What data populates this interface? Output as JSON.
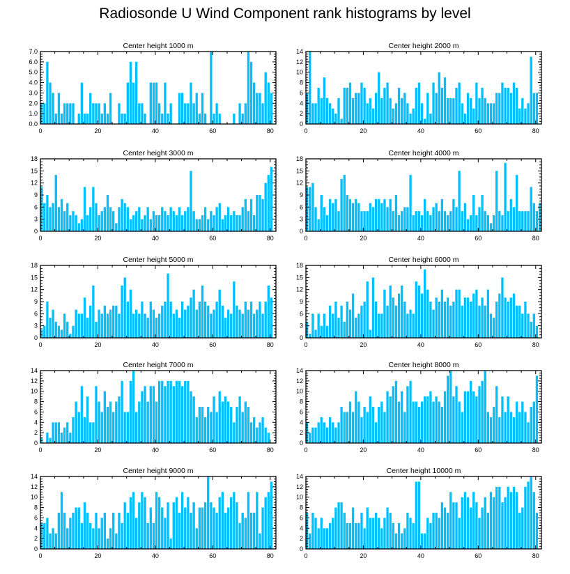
{
  "title": "Radiosonde U Wind Component rank histograms by level",
  "colors": {
    "bar": "#00bfff",
    "axis": "#000000"
  },
  "chart_data": [
    {
      "type": "bar",
      "title": "Center height 1000 m",
      "xlim": [
        0,
        82
      ],
      "ylim": [
        0,
        7
      ],
      "xticks": [
        "0",
        "20",
        "40",
        "60",
        "80"
      ],
      "yticks": [
        "0.0",
        "1.0",
        "2.0",
        "3.0",
        "4.0",
        "5.0",
        "6.0",
        "7.0"
      ],
      "values": [
        2,
        2,
        6,
        4,
        3,
        1,
        3,
        1,
        2,
        2,
        2,
        2,
        0,
        1,
        4,
        1,
        1,
        3,
        2,
        2,
        2,
        1,
        2,
        1,
        3,
        0,
        0,
        2,
        1,
        1,
        4,
        6,
        4,
        6,
        2,
        2,
        1,
        0,
        4,
        4,
        4,
        2,
        1,
        4,
        1,
        2,
        0,
        0,
        3,
        3,
        2,
        2,
        4,
        2,
        3,
        1,
        3,
        1,
        0,
        7,
        1,
        2,
        1,
        0,
        0,
        0,
        0,
        1,
        0,
        2,
        1,
        2,
        7,
        6,
        4,
        3,
        3,
        2,
        5,
        4,
        3
      ]
    },
    {
      "type": "bar",
      "title": "Center height 2000 m",
      "xlim": [
        0,
        82
      ],
      "ylim": [
        0,
        14
      ],
      "xticks": [
        "0",
        "20",
        "40",
        "60",
        "80"
      ],
      "yticks": [
        "0",
        "2",
        "4",
        "6",
        "8",
        "10",
        "12",
        "14"
      ],
      "values": [
        6,
        14,
        4,
        4,
        7,
        5,
        9,
        5,
        4,
        3,
        2,
        5,
        1,
        7,
        7,
        8,
        5,
        6,
        6,
        8,
        7,
        4,
        5,
        3,
        6,
        10,
        5,
        7,
        8,
        5,
        3,
        4,
        7,
        5,
        6,
        4,
        2,
        3,
        7,
        8,
        4,
        1,
        6,
        2,
        8,
        6,
        10,
        7,
        9,
        5,
        5,
        5,
        7,
        8,
        4,
        2,
        6,
        5,
        3,
        8,
        5,
        7,
        5,
        4,
        4,
        4,
        6,
        6,
        8,
        7,
        7,
        6,
        8,
        7,
        3,
        5,
        3,
        4,
        13,
        6,
        6
      ]
    },
    {
      "type": "bar",
      "title": "Center height 3000 m",
      "xlim": [
        0,
        82
      ],
      "ylim": [
        0,
        18
      ],
      "xticks": [
        "0",
        "20",
        "40",
        "60",
        "80"
      ],
      "yticks": [
        "0",
        "3",
        "6",
        "9",
        "12",
        "15",
        "18"
      ],
      "values": [
        11,
        7,
        9,
        6,
        7,
        14,
        6,
        8,
        5,
        7,
        4,
        5,
        4,
        2,
        3,
        11,
        4,
        6,
        11,
        7,
        4,
        5,
        6,
        9,
        6,
        5,
        2,
        6,
        8,
        7,
        6,
        3,
        4,
        5,
        6,
        3,
        4,
        6,
        3,
        5,
        4,
        4,
        6,
        5,
        4,
        6,
        5,
        4,
        6,
        4,
        5,
        6,
        15,
        5,
        3,
        3,
        4,
        6,
        3,
        5,
        4,
        6,
        7,
        3,
        4,
        6,
        4,
        5,
        4,
        4,
        6,
        8,
        5,
        8,
        4,
        9,
        9,
        8,
        12,
        14,
        16
      ]
    },
    {
      "type": "bar",
      "title": "Center height 4000 m",
      "xlim": [
        0,
        82
      ],
      "ylim": [
        0,
        18
      ],
      "xticks": [
        "0",
        "20",
        "40",
        "60",
        "80"
      ],
      "yticks": [
        "0",
        "3",
        "6",
        "9",
        "12",
        "15",
        "18"
      ],
      "values": [
        11,
        11,
        12,
        6,
        3,
        9,
        6,
        4,
        8,
        7,
        8,
        5,
        13,
        14,
        9,
        8,
        7,
        8,
        7,
        5,
        5,
        5,
        7,
        6,
        8,
        8,
        7,
        8,
        6,
        8,
        5,
        9,
        4,
        5,
        6,
        6,
        14,
        4,
        5,
        5,
        4,
        8,
        5,
        4,
        6,
        7,
        5,
        8,
        5,
        4,
        5,
        8,
        6,
        15,
        5,
        7,
        3,
        4,
        9,
        4,
        6,
        9,
        5,
        4,
        2,
        4,
        15,
        5,
        4,
        17,
        5,
        8,
        6,
        14,
        5,
        5,
        5,
        5,
        11,
        7,
        5,
        7
      ]
    },
    {
      "type": "bar",
      "title": "Center height 5000 m",
      "xlim": [
        0,
        82
      ],
      "ylim": [
        0,
        18
      ],
      "xticks": [
        "0",
        "20",
        "40",
        "60",
        "80"
      ],
      "yticks": [
        "0",
        "3",
        "6",
        "9",
        "12",
        "15",
        "18"
      ],
      "values": [
        2,
        3,
        9,
        5,
        7,
        4,
        3,
        2,
        6,
        4,
        1,
        3,
        7,
        6,
        6,
        10,
        5,
        8,
        13,
        4,
        7,
        6,
        8,
        6,
        7,
        8,
        8,
        6,
        13,
        15,
        9,
        12,
        6,
        7,
        6,
        9,
        6,
        5,
        9,
        7,
        5,
        6,
        8,
        9,
        16,
        9,
        6,
        7,
        5,
        9,
        7,
        8,
        10,
        12,
        7,
        9,
        13,
        9,
        8,
        6,
        7,
        9,
        12,
        8,
        5,
        7,
        6,
        14,
        8,
        7,
        6,
        9,
        7,
        9,
        6,
        7,
        9,
        6,
        9,
        13,
        10
      ]
    },
    {
      "type": "bar",
      "title": "Center height 6000 m",
      "xlim": [
        0,
        82
      ],
      "ylim": [
        0,
        18
      ],
      "xticks": [
        "0",
        "20",
        "40",
        "60",
        "80"
      ],
      "yticks": [
        "0",
        "3",
        "6",
        "9",
        "12",
        "15",
        "18"
      ],
      "values": [
        4,
        1,
        6,
        2,
        6,
        3,
        6,
        3,
        8,
        6,
        9,
        5,
        8,
        4,
        9,
        7,
        11,
        5,
        6,
        8,
        9,
        14,
        2,
        15,
        9,
        6,
        6,
        12,
        8,
        13,
        10,
        8,
        11,
        13,
        9,
        6,
        7,
        6,
        14,
        13,
        11,
        17,
        12,
        9,
        7,
        10,
        9,
        12,
        9,
        10,
        8,
        9,
        12,
        12,
        8,
        10,
        10,
        9,
        11,
        12,
        8,
        10,
        8,
        12,
        6,
        5,
        9,
        11,
        15,
        10,
        9,
        10,
        11,
        8,
        8,
        6,
        9,
        6,
        4,
        6,
        3
      ]
    },
    {
      "type": "bar",
      "title": "Center height 7000 m",
      "xlim": [
        0,
        82
      ],
      "ylim": [
        0,
        14
      ],
      "xticks": [
        "0",
        "20",
        "40",
        "60",
        "80"
      ],
      "yticks": [
        "0",
        "2",
        "4",
        "6",
        "8",
        "10",
        "12",
        "14"
      ],
      "values": [
        1,
        0,
        2,
        1,
        4,
        4,
        4,
        2,
        3,
        4,
        2,
        5,
        8,
        6,
        11,
        5,
        9,
        4,
        4,
        11,
        8,
        6,
        10,
        7,
        8,
        6,
        8,
        9,
        12,
        6,
        6,
        12,
        14,
        6,
        8,
        10,
        11,
        8,
        11,
        11,
        8,
        12,
        12,
        11,
        12,
        12,
        11,
        12,
        12,
        11,
        12,
        12,
        10,
        9,
        5,
        7,
        7,
        5,
        7,
        6,
        9,
        6,
        10,
        8,
        9,
        8,
        7,
        4,
        7,
        9,
        6,
        8,
        7,
        4,
        5,
        3,
        4,
        5,
        3,
        2
      ]
    },
    {
      "type": "bar",
      "title": "Center height 8000 m",
      "xlim": [
        0,
        82
      ],
      "ylim": [
        0,
        14
      ],
      "xticks": [
        "0",
        "20",
        "40",
        "60",
        "80"
      ],
      "yticks": [
        "0",
        "2",
        "4",
        "6",
        "8",
        "10",
        "12",
        "14"
      ],
      "values": [
        4,
        2,
        3,
        3,
        4,
        5,
        4,
        3,
        5,
        4,
        3,
        4,
        7,
        6,
        6,
        8,
        6,
        10,
        8,
        5,
        7,
        6,
        9,
        7,
        4,
        7,
        8,
        6,
        10,
        9,
        11,
        12,
        8,
        10,
        6,
        11,
        12,
        8,
        8,
        7,
        8,
        9,
        9,
        10,
        8,
        9,
        8,
        7,
        10,
        13,
        14,
        9,
        11,
        8,
        6,
        10,
        10,
        12,
        10,
        9,
        11,
        12,
        14,
        6,
        5,
        7,
        11,
        5,
        9,
        6,
        9,
        6,
        5,
        8,
        6,
        8,
        6,
        4,
        7,
        8,
        13
      ]
    },
    {
      "type": "bar",
      "title": "Center height 9000 m",
      "xlim": [
        0,
        82
      ],
      "ylim": [
        0,
        14
      ],
      "xticks": [
        "0",
        "20",
        "40",
        "60",
        "80"
      ],
      "yticks": [
        "0",
        "2",
        "4",
        "6",
        "8",
        "10",
        "12",
        "14"
      ],
      "values": [
        5,
        5,
        6,
        3,
        4,
        3,
        7,
        11,
        7,
        4,
        6,
        7,
        8,
        8,
        5,
        9,
        7,
        5,
        4,
        7,
        4,
        6,
        7,
        2,
        4,
        7,
        3,
        7,
        5,
        9,
        7,
        10,
        11,
        6,
        9,
        11,
        10,
        5,
        8,
        5,
        11,
        10,
        8,
        6,
        9,
        2,
        9,
        10,
        7,
        11,
        8,
        10,
        7,
        9,
        4,
        8,
        8,
        9,
        14,
        9,
        8,
        7,
        10,
        11,
        7,
        8,
        10,
        11,
        9,
        5,
        7,
        6,
        11,
        7,
        7,
        11,
        3,
        8,
        10,
        11,
        13
      ]
    },
    {
      "type": "bar",
      "title": "Center height 10000 m",
      "xlim": [
        0,
        82
      ],
      "ylim": [
        0,
        14
      ],
      "xticks": [
        "0",
        "20",
        "40",
        "60",
        "80"
      ],
      "yticks": [
        "0",
        "2",
        "4",
        "6",
        "8",
        "10",
        "12",
        "14"
      ],
      "values": [
        7,
        3,
        7,
        6,
        4,
        6,
        4,
        4,
        5,
        6,
        8,
        9,
        9,
        7,
        5,
        5,
        8,
        5,
        5,
        7,
        4,
        8,
        6,
        6,
        7,
        6,
        4,
        6,
        8,
        7,
        5,
        3,
        5,
        3,
        4,
        7,
        6,
        5,
        13,
        13,
        3,
        3,
        6,
        5,
        7,
        7,
        6,
        9,
        8,
        7,
        11,
        9,
        9,
        6,
        10,
        11,
        10,
        8,
        11,
        9,
        6,
        8,
        10,
        7,
        11,
        10,
        12,
        12,
        9,
        10,
        12,
        11,
        12,
        11,
        7,
        8,
        12,
        13,
        14,
        11,
        7
      ]
    }
  ]
}
